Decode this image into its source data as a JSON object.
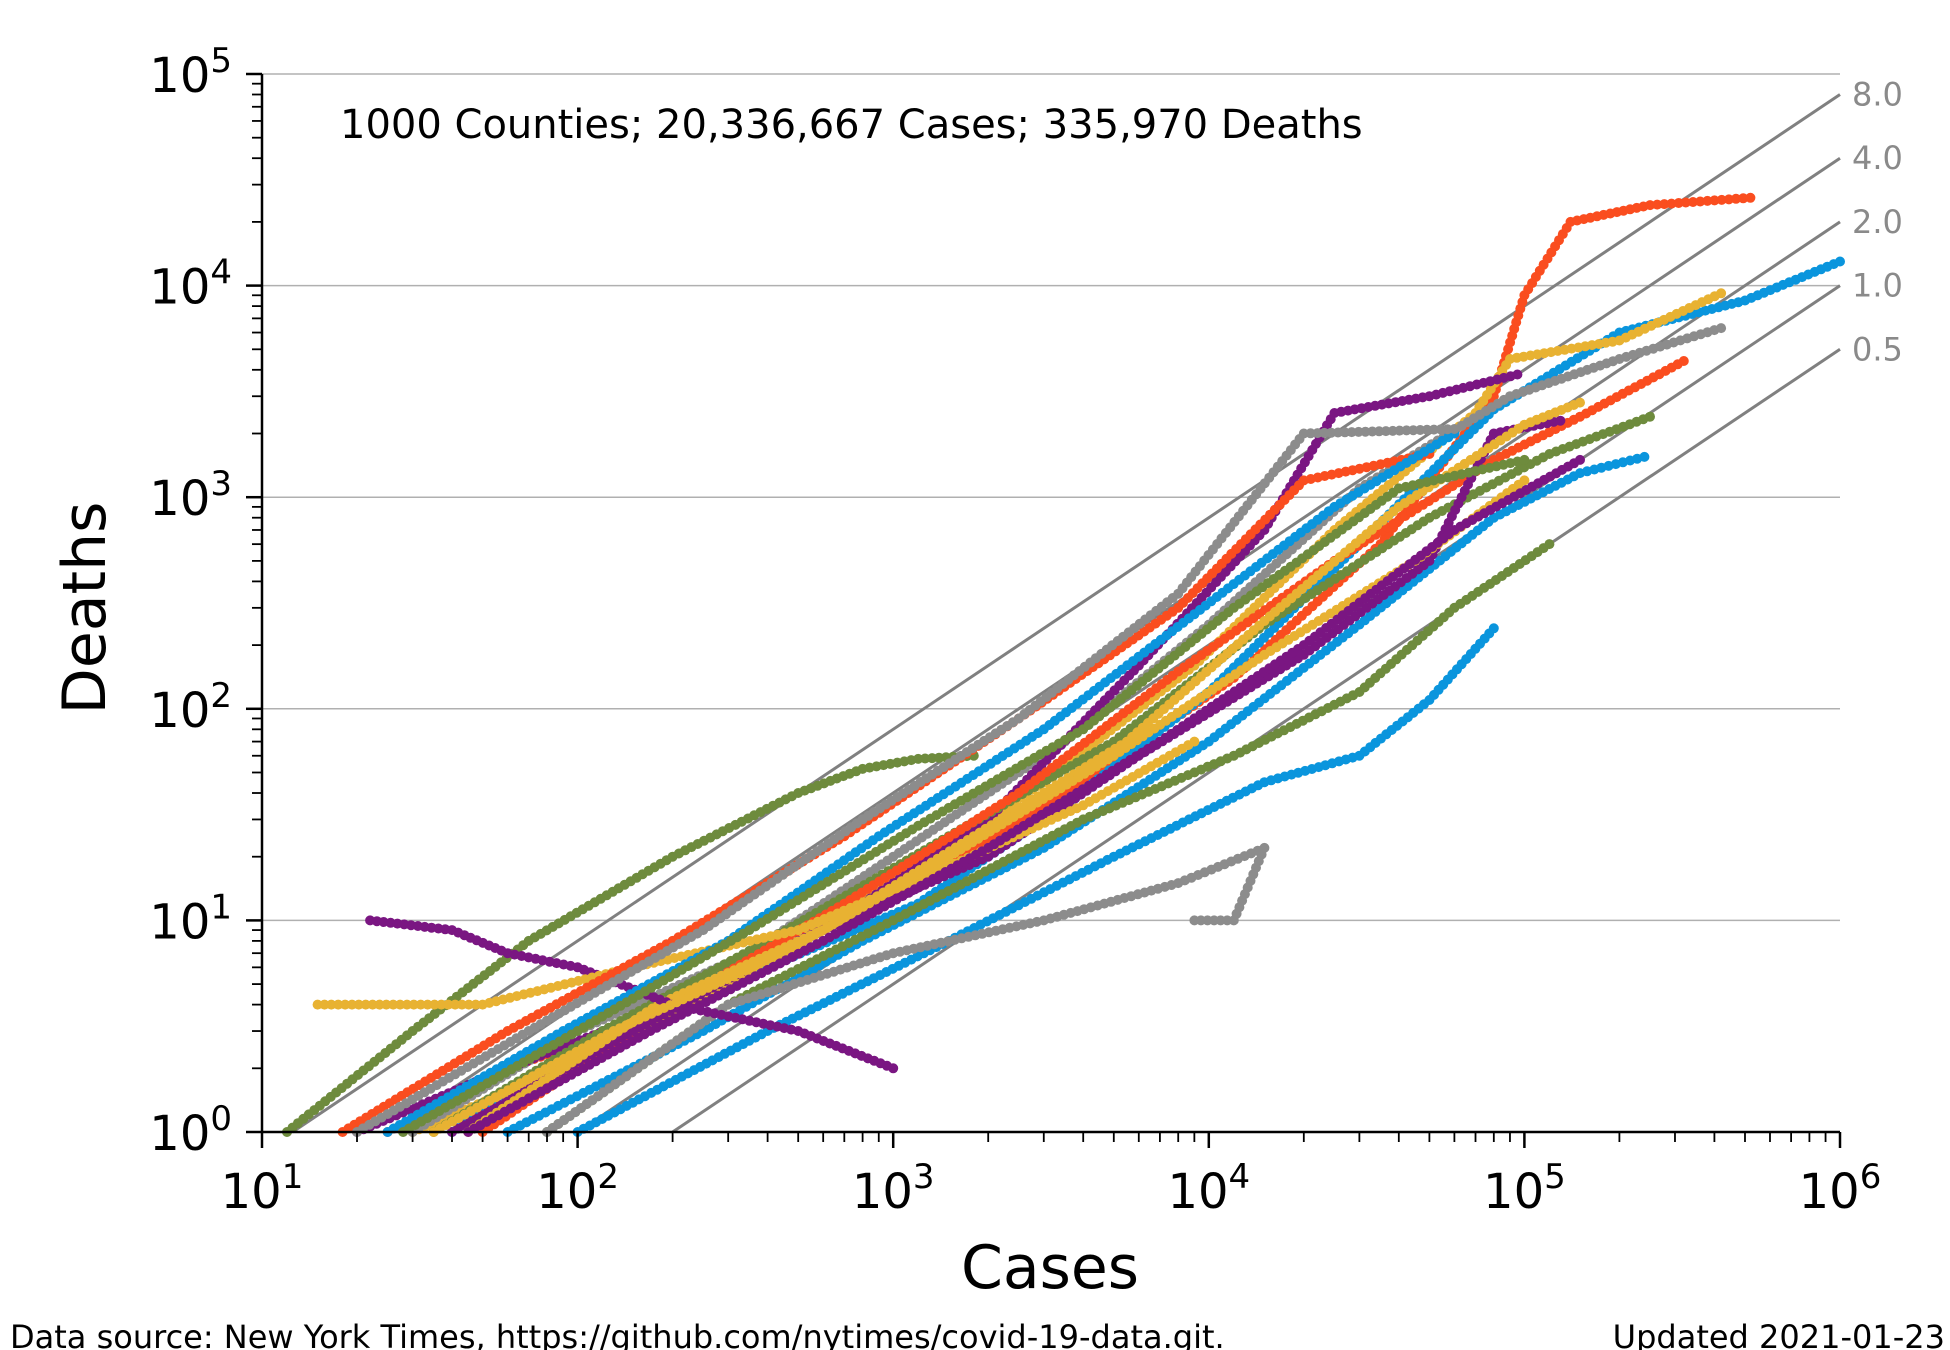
{
  "chart_data": {
    "type": "scatter",
    "xscale": "log",
    "yscale": "log",
    "xlabel": "Cases",
    "ylabel": "Deaths",
    "xlim": [
      10,
      1000000
    ],
    "ylim": [
      1,
      100000
    ],
    "x_ticks": [
      10,
      100,
      1000,
      10000,
      100000,
      1000000
    ],
    "y_ticks": [
      1,
      10,
      100,
      1000,
      10000,
      100000
    ],
    "horizontal_grid": true,
    "annotation": "1000 Counties; 20,336,667 Cases; 335,970 Deaths",
    "reference_lines": [
      {
        "label": "8.0",
        "deaths_per_100_cases": 8.0
      },
      {
        "label": "4.0",
        "deaths_per_100_cases": 4.0
      },
      {
        "label": "2.0",
        "deaths_per_100_cases": 2.0
      },
      {
        "label": "1.0",
        "deaths_per_100_cases": 1.0
      },
      {
        "label": "0.5",
        "deaths_per_100_cases": 0.5
      }
    ],
    "palette": [
      "#fa4d1f",
      "#0a95dd",
      "#e8b232",
      "#7a1682",
      "#6e8b3d",
      "#8c8c8c"
    ],
    "series": [
      {
        "color": "#fa4d1f",
        "points": [
          [
            25,
            1
          ],
          [
            60,
            2
          ],
          [
            130,
            3
          ],
          [
            260,
            5
          ],
          [
            600,
            9
          ],
          [
            1500,
            18
          ],
          [
            4000,
            45
          ],
          [
            12000,
            140
          ],
          [
            35000,
            600
          ],
          [
            80000,
            3000
          ],
          [
            100000,
            9000
          ],
          [
            140000,
            20000
          ],
          [
            250000,
            24000
          ],
          [
            520000,
            26000
          ]
        ]
      },
      {
        "color": "#0a95dd",
        "points": [
          [
            40,
            1
          ],
          [
            120,
            3
          ],
          [
            400,
            6
          ],
          [
            1200,
            12
          ],
          [
            3500,
            35
          ],
          [
            10000,
            120
          ],
          [
            30000,
            600
          ],
          [
            80000,
            2600
          ],
          [
            200000,
            6000
          ],
          [
            500000,
            8500
          ],
          [
            1000000,
            13000
          ]
        ]
      },
      {
        "color": "#e8b232",
        "points": [
          [
            30,
            1
          ],
          [
            90,
            2
          ],
          [
            300,
            5
          ],
          [
            900,
            14
          ],
          [
            3000,
            45
          ],
          [
            9000,
            160
          ],
          [
            25000,
            700
          ],
          [
            70000,
            2500
          ],
          [
            90000,
            4500
          ],
          [
            200000,
            5500
          ],
          [
            420000,
            9200
          ]
        ]
      },
      {
        "color": "#8c8c8c",
        "points": [
          [
            30,
            1
          ],
          [
            100,
            3
          ],
          [
            350,
            7
          ],
          [
            1000,
            20
          ],
          [
            3500,
            70
          ],
          [
            10000,
            250
          ],
          [
            30000,
            1100
          ],
          [
            90000,
            3000
          ],
          [
            200000,
            4500
          ],
          [
            420000,
            6300
          ]
        ]
      },
      {
        "color": "#7a1682",
        "points": [
          [
            20,
            1
          ],
          [
            60,
            2
          ],
          [
            200,
            4
          ],
          [
            600,
            9
          ],
          [
            2000,
            30
          ],
          [
            6000,
            160
          ],
          [
            15000,
            700
          ],
          [
            25000,
            2500
          ],
          [
            50000,
            3000
          ],
          [
            95000,
            3800
          ]
        ]
      },
      {
        "color": "#6e8b3d",
        "points": [
          [
            35,
            1
          ],
          [
            120,
            3
          ],
          [
            400,
            8
          ],
          [
            1500,
            25
          ],
          [
            5000,
            70
          ],
          [
            15000,
            250
          ],
          [
            50000,
            800
          ],
          [
            120000,
            1600
          ],
          [
            250000,
            2400
          ]
        ]
      },
      {
        "color": "#fa4d1f",
        "points": [
          [
            50,
            1
          ],
          [
            200,
            4
          ],
          [
            700,
            12
          ],
          [
            2500,
            40
          ],
          [
            8000,
            150
          ],
          [
            25000,
            500
          ],
          [
            80000,
            1500
          ],
          [
            150000,
            2400
          ],
          [
            320000,
            4400
          ]
        ]
      },
      {
        "color": "#0a95dd",
        "points": [
          [
            60,
            1
          ],
          [
            250,
            3
          ],
          [
            800,
            8
          ],
          [
            3000,
            22
          ],
          [
            10000,
            70
          ],
          [
            30000,
            250
          ],
          [
            80000,
            800
          ],
          [
            150000,
            1300
          ],
          [
            240000,
            1550
          ]
        ]
      },
      {
        "color": "#7a1682",
        "points": [
          [
            40,
            1
          ],
          [
            150,
            3
          ],
          [
            500,
            8
          ],
          [
            2000,
            20
          ],
          [
            6000,
            60
          ],
          [
            20000,
            180
          ],
          [
            50000,
            500
          ],
          [
            80000,
            2000
          ],
          [
            130000,
            2300
          ]
        ]
      },
      {
        "color": "#e8b232",
        "points": [
          [
            45,
            1
          ],
          [
            180,
            4
          ],
          [
            600,
            9
          ],
          [
            1800,
            25
          ],
          [
            5500,
            70
          ],
          [
            15000,
            260
          ],
          [
            40000,
            900
          ],
          [
            100000,
            2200
          ],
          [
            150000,
            2800
          ]
        ]
      },
      {
        "color": "#6e8b3d",
        "points": [
          [
            80,
            1
          ],
          [
            300,
            4
          ],
          [
            1000,
            10
          ],
          [
            4000,
            30
          ],
          [
            12000,
            60
          ],
          [
            30000,
            120
          ],
          [
            60000,
            300
          ],
          [
            120000,
            600
          ]
        ]
      },
      {
        "color": "#0a95dd",
        "points": [
          [
            100,
            1
          ],
          [
            400,
            3
          ],
          [
            1500,
            8
          ],
          [
            5000,
            20
          ],
          [
            15000,
            45
          ],
          [
            30000,
            60
          ],
          [
            50000,
            110
          ],
          [
            80000,
            240
          ]
        ]
      },
      {
        "color": "#8c8c8c",
        "points": [
          [
            80,
            1
          ],
          [
            300,
            4
          ],
          [
            1000,
            7
          ],
          [
            3000,
            10
          ],
          [
            8000,
            15
          ],
          [
            15000,
            22
          ],
          [
            12000,
            10
          ],
          [
            9000,
            10
          ]
        ]
      },
      {
        "color": "#6e8b3d",
        "points": [
          [
            12,
            1
          ],
          [
            30,
            3
          ],
          [
            70,
            8
          ],
          [
            200,
            20
          ],
          [
            500,
            40
          ],
          [
            800,
            52
          ],
          [
            1200,
            58
          ],
          [
            1800,
            60
          ]
        ]
      },
      {
        "color": "#7a1682",
        "points": [
          [
            22,
            10
          ],
          [
            40,
            9
          ],
          [
            60,
            7
          ],
          [
            100,
            6
          ],
          [
            200,
            4
          ],
          [
            500,
            3
          ],
          [
            1000,
            2
          ]
        ]
      },
      {
        "color": "#e8b232",
        "points": [
          [
            15,
            4
          ],
          [
            50,
            4
          ],
          [
            150,
            6
          ],
          [
            500,
            9
          ],
          [
            1500,
            18
          ],
          [
            4000,
            35
          ],
          [
            9000,
            70
          ]
        ]
      },
      {
        "color": "#fa4d1f",
        "points": [
          [
            18,
            1
          ],
          [
            60,
            3
          ],
          [
            200,
            8
          ],
          [
            700,
            25
          ],
          [
            2500,
            90
          ],
          [
            8000,
            300
          ],
          [
            20000,
            1200
          ],
          [
            50000,
            1600
          ]
        ]
      },
      {
        "color": "#0a95dd",
        "points": [
          [
            25,
            1
          ],
          [
            90,
            3
          ],
          [
            300,
            8
          ],
          [
            900,
            25
          ],
          [
            3000,
            80
          ],
          [
            9000,
            280
          ],
          [
            25000,
            900
          ],
          [
            60000,
            2000
          ]
        ]
      },
      {
        "color": "#8c8c8c",
        "points": [
          [
            20,
            1
          ],
          [
            70,
            3
          ],
          [
            250,
            9
          ],
          [
            800,
            30
          ],
          [
            2500,
            90
          ],
          [
            8000,
            350
          ],
          [
            20000,
            2000
          ],
          [
            60000,
            2100
          ]
        ]
      },
      {
        "color": "#6e8b3d",
        "points": [
          [
            28,
            1
          ],
          [
            100,
            3
          ],
          [
            350,
            9
          ],
          [
            1200,
            28
          ],
          [
            4000,
            80
          ],
          [
            12000,
            300
          ],
          [
            40000,
            1100
          ],
          [
            100000,
            1500
          ]
        ]
      },
      {
        "color": "#e8b232",
        "points": [
          [
            35,
            1
          ],
          [
            130,
            3
          ],
          [
            450,
            7
          ],
          [
            1500,
            20
          ],
          [
            5000,
            60
          ],
          [
            15000,
            180
          ],
          [
            45000,
            500
          ],
          [
            100000,
            1200
          ]
        ]
      },
      {
        "color": "#7a1682",
        "points": [
          [
            45,
            1
          ],
          [
            170,
            3
          ],
          [
            600,
            8
          ],
          [
            2000,
            22
          ],
          [
            7000,
            70
          ],
          [
            20000,
            200
          ],
          [
            60000,
            700
          ],
          [
            150000,
            1500
          ]
        ]
      }
    ]
  },
  "footer": {
    "source": "Data source: New York Times, https://github.com/nytimes/covid-19-data.git.",
    "updated": "Updated 2021-01-23"
  }
}
